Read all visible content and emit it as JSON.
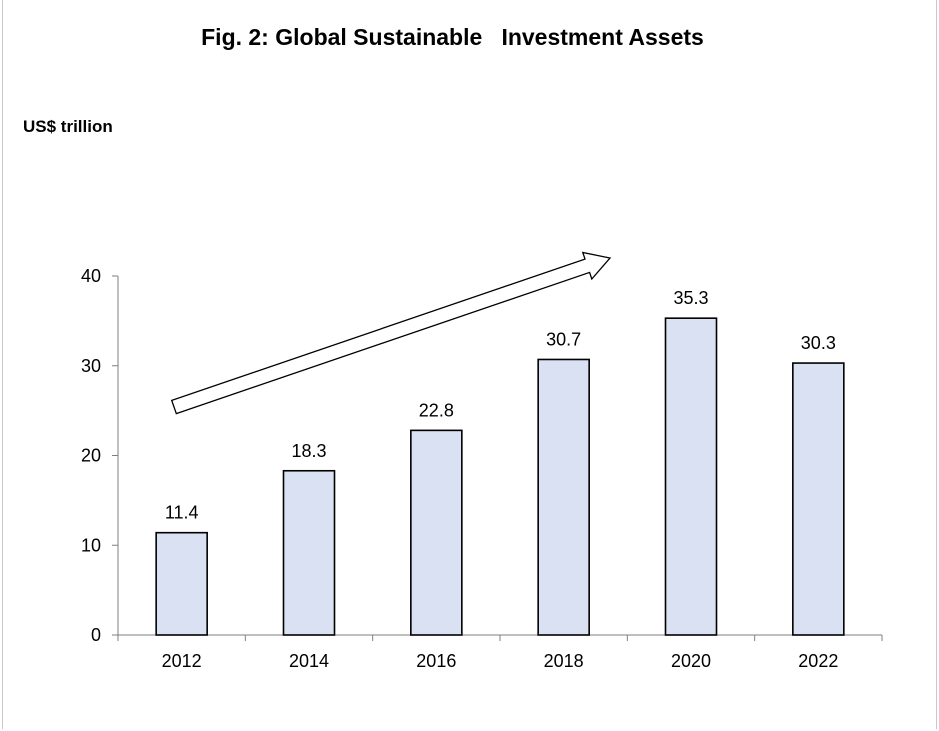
{
  "chart_data": {
    "type": "bar",
    "title": "Fig. 2: Global Sustainable   Investment Assets",
    "ylabel": "US$ trillion",
    "xlabel": "",
    "categories": [
      "2012",
      "2014",
      "2016",
      "2018",
      "2020",
      "2022"
    ],
    "values": [
      11.4,
      18.3,
      22.8,
      30.7,
      35.3,
      30.3
    ],
    "data_labels": [
      "11.4",
      "18.3",
      "22.8",
      "30.7",
      "35.3",
      "30.3"
    ],
    "ylim": [
      0,
      40
    ],
    "yticks": [
      "0",
      "10",
      "20",
      "30",
      "40"
    ],
    "grid": false,
    "legend": "none",
    "annotations": [
      "upward-trend-arrow"
    ],
    "colors": {
      "bar_fill": "#d9e1f2",
      "bar_stroke": "#000000",
      "axis": "#7f7f7f",
      "text": "#000000"
    }
  }
}
